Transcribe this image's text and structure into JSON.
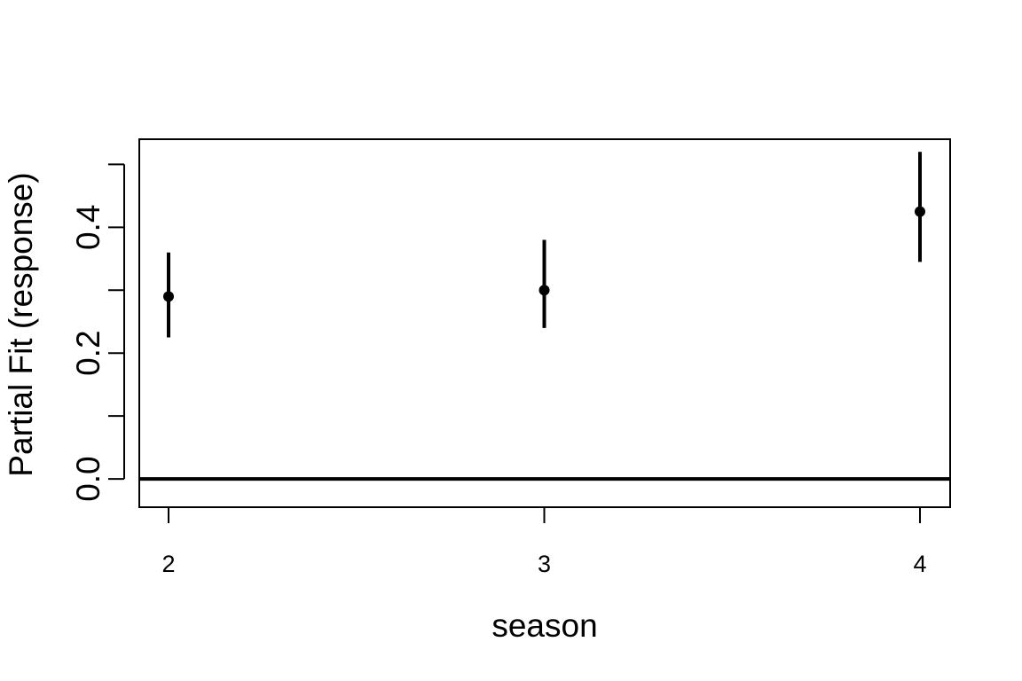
{
  "chart_data": {
    "type": "scatter",
    "title": "",
    "xlabel": "season",
    "ylabel": "Partial Fit (response)",
    "categories": [
      "2",
      "3",
      "4"
    ],
    "series": [
      {
        "values": [
          0.29,
          0.3,
          0.425
        ],
        "lower": [
          0.225,
          0.24,
          0.345
        ],
        "upper": [
          0.36,
          0.38,
          0.52
        ]
      }
    ],
    "reference_line": 0.0,
    "ylim": [
      -0.045,
      0.54
    ],
    "yticks": [
      0.0,
      0.1,
      0.2,
      0.3,
      0.4,
      0.5
    ],
    "ytick_labels": [
      "0.0",
      "",
      "0.2",
      "",
      "0.4",
      ""
    ],
    "grid": false,
    "color": "#000000"
  }
}
